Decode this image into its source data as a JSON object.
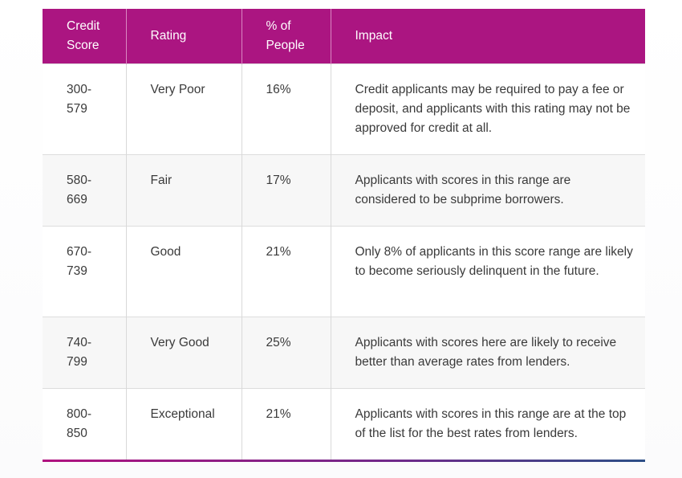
{
  "table": {
    "headers": [
      "Credit\nScore",
      "Rating",
      "% of\nPeople",
      "Impact"
    ],
    "rows": [
      {
        "score": "300-\n579",
        "rating": "Very Poor",
        "percent": "16%",
        "impact": "Credit applicants may be required to pay a fee or deposit, and applicants with this rating may not be approved for credit at all."
      },
      {
        "score": "580-\n669",
        "rating": "Fair",
        "percent": "17%",
        "impact": "Applicants with scores in this range are considered to be subprime borrowers."
      },
      {
        "score": "670-\n739",
        "rating": "Good",
        "percent": "21%",
        "impact": "Only 8% of applicants in this score range are likely to become seriously delinquent in the future."
      },
      {
        "score": "740-\n799",
        "rating": "Very Good",
        "percent": "25%",
        "impact": "Applicants with scores here are likely to receive better than average rates from lenders."
      },
      {
        "score": "800-\n850",
        "rating": "Exceptional",
        "percent": "21%",
        "impact": "Applicants with scores in this range are at the top of the list for the best rates from lenders."
      }
    ]
  },
  "colors": {
    "header_bg": "#ab1581",
    "header_text": "#ffffff",
    "body_text": "#3a3a3a",
    "alt_row_bg": "#f7f7f7"
  }
}
